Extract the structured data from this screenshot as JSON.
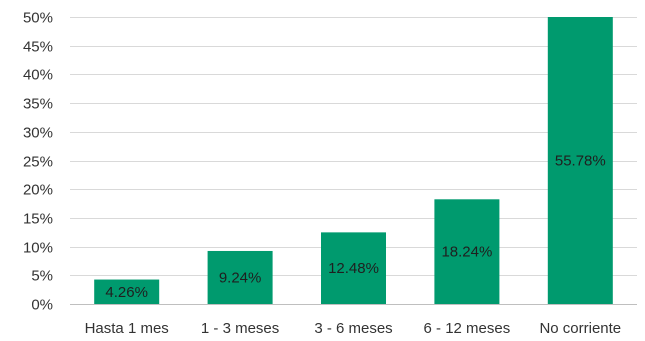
{
  "chart_data": {
    "type": "bar",
    "title": "",
    "xlabel": "",
    "ylabel": "",
    "categories": [
      "Hasta 1 mes",
      "1 - 3 meses",
      "3 - 6 meses",
      "6 - 12 meses",
      "No corriente"
    ],
    "values": [
      4.26,
      9.24,
      12.48,
      18.24,
      55.78
    ],
    "data_labels": [
      "4.26%",
      "9.24%",
      "12.48%",
      "18.24%",
      "55.78%"
    ],
    "ylim": [
      0,
      50
    ],
    "yticks": [
      0,
      5,
      10,
      15,
      20,
      25,
      30,
      35,
      40,
      45,
      50
    ],
    "ytick_labels": [
      "0%",
      "5%",
      "10%",
      "15%",
      "20%",
      "25%",
      "30%",
      "35%",
      "40%",
      "45%",
      "50%"
    ],
    "grid": true,
    "legend": "none",
    "bar_color": "#009a6e"
  }
}
